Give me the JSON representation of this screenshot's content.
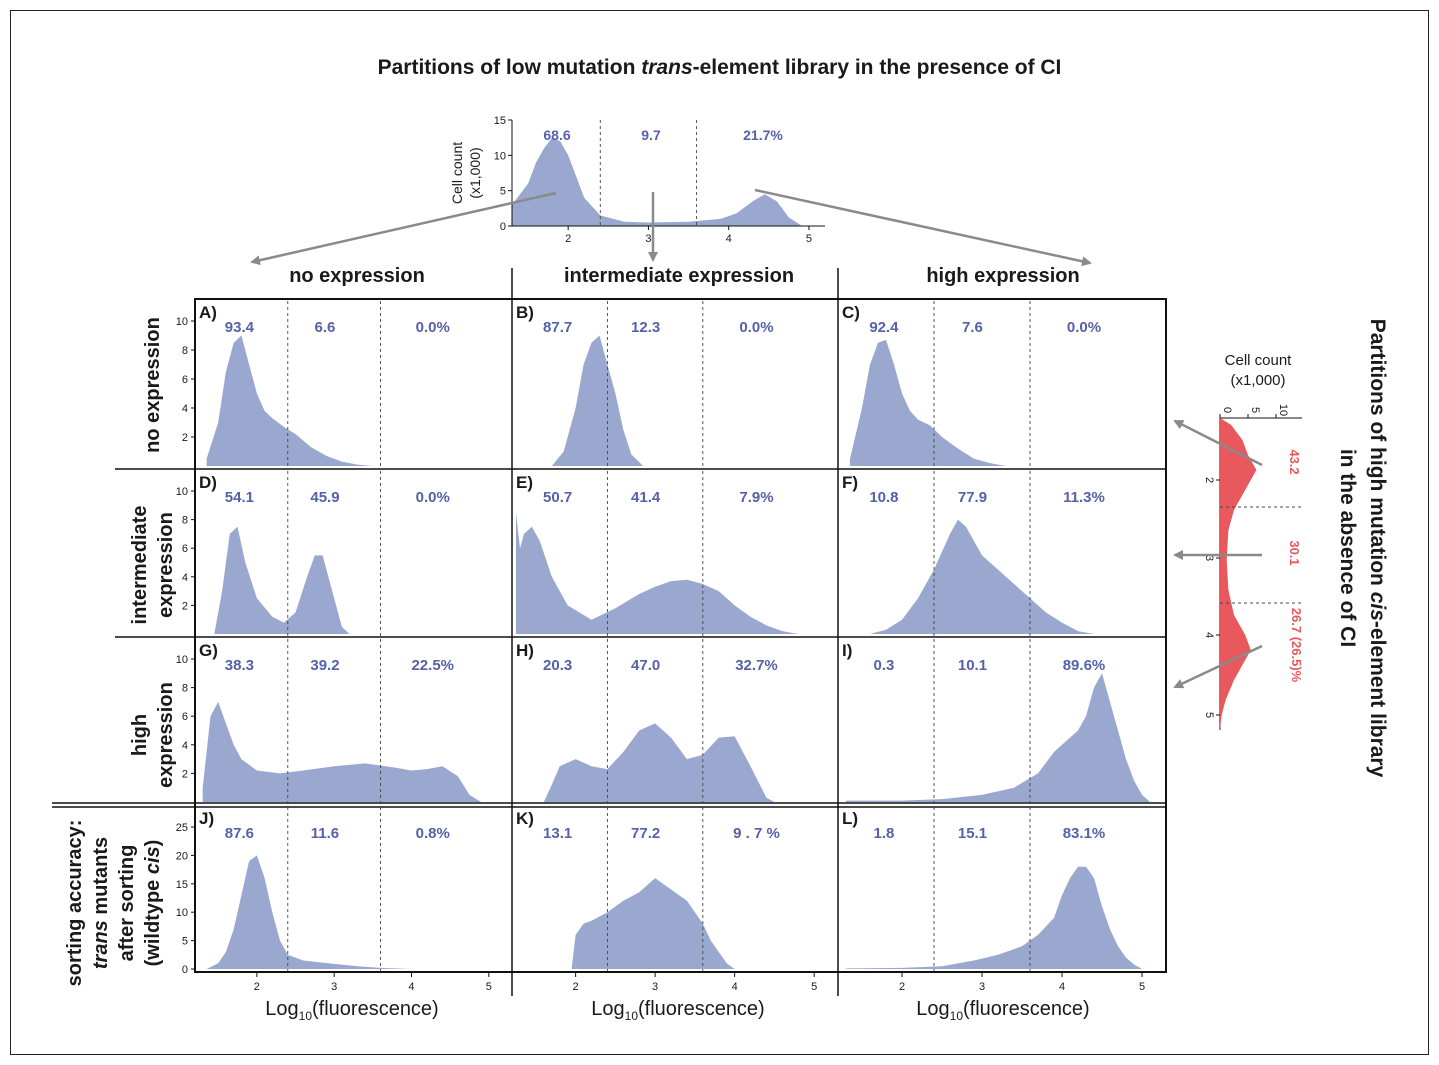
{
  "title_pre": "Partitions of low mutation ",
  "title_em": "trans",
  "title_post": "-element library in the presence of CI",
  "side_title_line1_pre": "Partitions of high mutation ",
  "side_title_line1_em": "cis",
  "side_title_line1_post": "-element library",
  "side_title_line2": "in the absence of CI",
  "column_headers": [
    "no expression",
    "intermediate expression",
    "high expression"
  ],
  "row_headers": {
    "r1": "no expression",
    "r2_l1": "intermediate",
    "r2_l2": "expression",
    "r3_l1": "high",
    "r3_l2": "expression",
    "r4_l1": "sorting accuracy:",
    "r4_l2_em": "trans",
    "r4_l2_post": " mutants",
    "r4_l3": "after sorting",
    "r4_l4_pre": "(wildtype ",
    "r4_l4_em": "cis",
    "r4_l4_post": ")"
  },
  "xlabel_pre": "Log",
  "xlabel_sub": "10",
  "xlabel_post": "(fluorescence)",
  "top_ylabel_l1": "Cell count",
  "top_ylabel_l2": "(x1,000)",
  "right_label_l1": "Cell count",
  "right_label_l2": "(x1,000)",
  "colors": {
    "fill": "#9aa7cf",
    "text_blue": "#5561a8",
    "red": "#e8585c",
    "arrow": "#8a8a8a"
  },
  "chart_data": [
    {
      "id": "top",
      "type": "area",
      "x": [
        1.3,
        1.5,
        1.6,
        1.7,
        1.8,
        1.9,
        2.0,
        2.1,
        2.2,
        2.4,
        2.7,
        3.0,
        3.5,
        3.9,
        4.1,
        4.3,
        4.45,
        4.6,
        4.75,
        4.9
      ],
      "y": [
        3,
        6,
        9,
        11,
        12.5,
        12,
        10,
        7,
        4,
        1.5,
        0.6,
        0.5,
        0.6,
        1,
        1.8,
        3.5,
        4.5,
        3.5,
        1.2,
        0.1
      ],
      "ylim": [
        0,
        15
      ],
      "xlim": [
        1.3,
        5.2
      ],
      "yticks": [
        "0",
        "5",
        "10",
        "15"
      ],
      "xticks": [
        "2",
        "3",
        "4",
        "5"
      ],
      "partitions": [
        "68.6",
        "9.7",
        "21.7%"
      ]
    },
    {
      "id": "right",
      "type": "area",
      "orientation": "vertical",
      "partitions": [
        "43.2",
        "30.1",
        "26.7 (26.5)%"
      ],
      "xticks": [
        "0",
        "5",
        "10"
      ],
      "yticks": [
        "2",
        "3",
        "4",
        "5"
      ]
    },
    {
      "id": "A",
      "label": "A)",
      "type": "area",
      "partitions": [
        "93.4",
        "6.6",
        "0.0%"
      ],
      "ylim": [
        0,
        10
      ],
      "yticks": [
        "2",
        "4",
        "6",
        "8",
        "10"
      ],
      "x": [
        1.35,
        1.5,
        1.6,
        1.7,
        1.8,
        1.9,
        2.0,
        2.1,
        2.2,
        2.35,
        2.5,
        2.7,
        2.9,
        3.1,
        3.3,
        3.5
      ],
      "y": [
        0.5,
        3,
        6.5,
        8.5,
        9,
        7,
        5,
        3.8,
        3.3,
        2.7,
        2.2,
        1.3,
        0.7,
        0.3,
        0.1,
        0
      ]
    },
    {
      "id": "B",
      "label": "B)",
      "type": "area",
      "partitions": [
        "87.7",
        "12.3",
        "0.0%"
      ],
      "ylim": [
        0,
        10
      ],
      "yticks": [],
      "x": [
        1.7,
        1.85,
        2.0,
        2.1,
        2.2,
        2.3,
        2.4,
        2.5,
        2.6,
        2.7,
        2.85
      ],
      "y": [
        0,
        1,
        4,
        7,
        8.5,
        9,
        7,
        5,
        2.5,
        0.8,
        0
      ]
    },
    {
      "id": "C",
      "label": "C)",
      "type": "area",
      "partitions": [
        "92.4",
        "7.6",
        "0.0%"
      ],
      "ylim": [
        0,
        10
      ],
      "yticks": [],
      "x": [
        1.35,
        1.5,
        1.6,
        1.7,
        1.8,
        1.9,
        2.0,
        2.1,
        2.2,
        2.35,
        2.5,
        2.7,
        2.9,
        3.1,
        3.3
      ],
      "y": [
        0.5,
        4,
        7,
        8.5,
        8.7,
        7,
        5,
        3.8,
        3.2,
        2.8,
        2,
        1.2,
        0.5,
        0.2,
        0
      ]
    },
    {
      "id": "D",
      "label": "D)",
      "type": "area",
      "partitions": [
        "54.1",
        "45.9",
        "0.0%"
      ],
      "ylim": [
        0,
        10
      ],
      "yticks": [
        "2",
        "4",
        "6",
        "8",
        "10"
      ],
      "x": [
        1.45,
        1.55,
        1.65,
        1.75,
        1.85,
        2.0,
        2.2,
        2.35,
        2.5,
        2.65,
        2.75,
        2.85,
        2.95,
        3.1,
        3.2
      ],
      "y": [
        0,
        3,
        7,
        7.5,
        5,
        2.5,
        1.2,
        0.8,
        1.5,
        4,
        5.5,
        5.5,
        3.5,
        0.5,
        0
      ]
    },
    {
      "id": "E",
      "label": "E)",
      "type": "area",
      "partitions": [
        "50.7",
        "41.4",
        "7.9%"
      ],
      "ylim": [
        0,
        10
      ],
      "yticks": [],
      "x": [
        1.25,
        1.3,
        1.35,
        1.45,
        1.55,
        1.7,
        1.9,
        2.2,
        2.5,
        2.8,
        3.0,
        3.2,
        3.4,
        3.6,
        3.8,
        4.0,
        4.2,
        4.4,
        4.6,
        4.8
      ],
      "y": [
        8.5,
        6,
        7,
        7.5,
        6.5,
        4,
        2,
        1,
        1.8,
        2.8,
        3.3,
        3.7,
        3.8,
        3.5,
        3,
        2,
        1.2,
        0.6,
        0.2,
        0
      ]
    },
    {
      "id": "F",
      "label": "F)",
      "type": "area",
      "partitions": [
        "10.8",
        "77.9",
        "11.3%"
      ],
      "ylim": [
        0,
        10
      ],
      "yticks": [],
      "x": [
        1.6,
        1.8,
        2.0,
        2.2,
        2.4,
        2.6,
        2.7,
        2.8,
        3.0,
        3.2,
        3.4,
        3.6,
        3.8,
        4.0,
        4.2,
        4.4
      ],
      "y": [
        0,
        0.3,
        1,
        2.5,
        4.5,
        7,
        8,
        7.5,
        5.5,
        4.5,
        3.5,
        2.5,
        1.5,
        0.8,
        0.2,
        0
      ]
    },
    {
      "id": "G",
      "label": "G)",
      "type": "area",
      "partitions": [
        "38.3",
        "39.2",
        "22.5%"
      ],
      "ylim": [
        0,
        10
      ],
      "yticks": [
        "2",
        "4",
        "6",
        "8",
        "10"
      ],
      "x": [
        1.3,
        1.4,
        1.5,
        1.6,
        1.7,
        1.8,
        2.0,
        2.3,
        2.6,
        3.0,
        3.4,
        3.8,
        4.0,
        4.2,
        4.4,
        4.6,
        4.75,
        4.9
      ],
      "y": [
        1,
        6,
        7,
        5.5,
        4,
        3,
        2.2,
        2,
        2.2,
        2.5,
        2.7,
        2.4,
        2.2,
        2.3,
        2.5,
        1.8,
        0.5,
        0
      ]
    },
    {
      "id": "H",
      "label": "H)",
      "type": "area",
      "partitions": [
        "20.3",
        "47.0",
        "32.7%"
      ],
      "ylim": [
        0,
        10
      ],
      "yticks": [],
      "x": [
        1.6,
        1.7,
        1.8,
        2.0,
        2.2,
        2.4,
        2.6,
        2.8,
        3.0,
        3.2,
        3.4,
        3.6,
        3.8,
        4.0,
        4.2,
        4.4,
        4.5
      ],
      "y": [
        0,
        1.2,
        2.5,
        3,
        2.5,
        2.3,
        3.5,
        5,
        5.5,
        4.5,
        3,
        3.3,
        4.5,
        4.6,
        2.5,
        0.3,
        0
      ]
    },
    {
      "id": "I",
      "label": "I)",
      "type": "area",
      "partitions": [
        "0.3",
        "10.1",
        "89.6%"
      ],
      "ylim": [
        0,
        10
      ],
      "yticks": [],
      "x": [
        1.3,
        2.0,
        2.5,
        3.0,
        3.4,
        3.7,
        3.9,
        4.0,
        4.1,
        4.2,
        4.3,
        4.4,
        4.5,
        4.6,
        4.7,
        4.8,
        4.9,
        5.0,
        5.1
      ],
      "y": [
        0.1,
        0.1,
        0.2,
        0.5,
        1,
        2,
        3.5,
        4,
        4.5,
        5,
        6,
        8,
        9,
        7,
        5,
        3,
        1.5,
        0.5,
        0
      ]
    },
    {
      "id": "J",
      "label": "J)",
      "type": "area",
      "partitions": [
        "87.6",
        "11.6",
        "0.8%"
      ],
      "ylim": [
        0,
        25
      ],
      "yticks": [
        "0",
        "5",
        "10",
        "15",
        "20",
        "25"
      ],
      "x": [
        1.35,
        1.5,
        1.6,
        1.7,
        1.8,
        1.9,
        2.0,
        2.1,
        2.2,
        2.3,
        2.4,
        2.6,
        2.8,
        3.0,
        3.3,
        3.6,
        4.0
      ],
      "y": [
        0,
        1,
        3,
        7,
        13,
        19,
        20,
        16,
        10,
        5,
        2.5,
        1.5,
        1.2,
        0.9,
        0.5,
        0.2,
        0
      ]
    },
    {
      "id": "K",
      "label": "K)",
      "type": "area",
      "partitions": [
        "13.1",
        "77.2",
        "9 . 7 %"
      ],
      "ylim": [
        0,
        25
      ],
      "yticks": [],
      "x": [
        1.95,
        2.0,
        2.1,
        2.2,
        2.4,
        2.6,
        2.8,
        3.0,
        3.2,
        3.4,
        3.6,
        3.7,
        3.8,
        3.9,
        4.0
      ],
      "y": [
        0,
        6,
        8,
        8.5,
        10,
        12,
        13.5,
        16,
        14,
        12,
        8,
        5,
        3,
        1,
        0
      ]
    },
    {
      "id": "L",
      "label": "L)",
      "type": "area",
      "partitions": [
        "1.8",
        "15.1",
        "83.1%"
      ],
      "ylim": [
        0,
        25
      ],
      "yticks": [],
      "x": [
        1.3,
        2.0,
        2.5,
        2.9,
        3.2,
        3.5,
        3.7,
        3.9,
        4.0,
        4.1,
        4.2,
        4.3,
        4.4,
        4.5,
        4.6,
        4.7,
        4.8,
        4.9,
        5.0
      ],
      "y": [
        0.1,
        0.2,
        0.5,
        1.5,
        2.5,
        4,
        6,
        9,
        13,
        16,
        18,
        18,
        16,
        11,
        7,
        4,
        2,
        0.8,
        0
      ]
    }
  ],
  "x_ticks": [
    "2",
    "3",
    "4",
    "5"
  ]
}
